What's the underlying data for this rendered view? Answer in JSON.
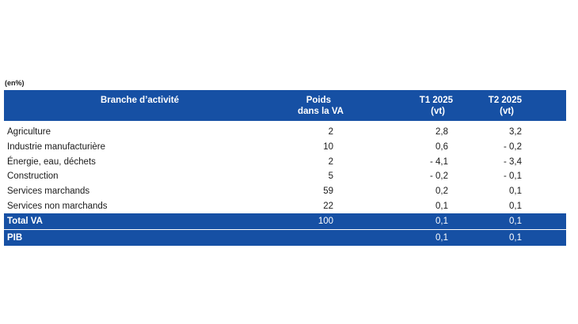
{
  "unit_note": "(en%)",
  "table": {
    "headers": {
      "branche": "Branche d’activité",
      "poids_line1": "Poids",
      "poids_line2": "dans la VA",
      "t1_line1": "T1 2025",
      "t1_line2": "(vt)",
      "t2_line1": "T2 2025",
      "t2_line2": "(vt)"
    },
    "rows": [
      {
        "branche": "Agriculture",
        "poids": "2",
        "t1": "2,8",
        "t2": "3,2"
      },
      {
        "branche": "Industrie manufacturière",
        "poids": "10",
        "t1": "0,6",
        "t2": "- 0,2"
      },
      {
        "branche": "Énergie, eau, déchets",
        "poids": "2",
        "t1": "- 4,1",
        "t2": "- 3,4"
      },
      {
        "branche": "Construction",
        "poids": "5",
        "t1": "- 0,2",
        "t2": "- 0,1"
      },
      {
        "branche": "Services marchands",
        "poids": "59",
        "t1": "0,2",
        "t2": "0,1"
      },
      {
        "branche": "Services non marchands",
        "poids": "22",
        "t1": "0,1",
        "t2": "0,1"
      }
    ],
    "totals": [
      {
        "branche": "Total VA",
        "poids": "100",
        "t1": "0,1",
        "t2": "0,1"
      },
      {
        "branche": "PIB",
        "poids": "",
        "t1": "0,1",
        "t2": "0,1"
      }
    ]
  },
  "colors": {
    "header_bg": "#1650a4",
    "header_text": "#ffffff"
  }
}
